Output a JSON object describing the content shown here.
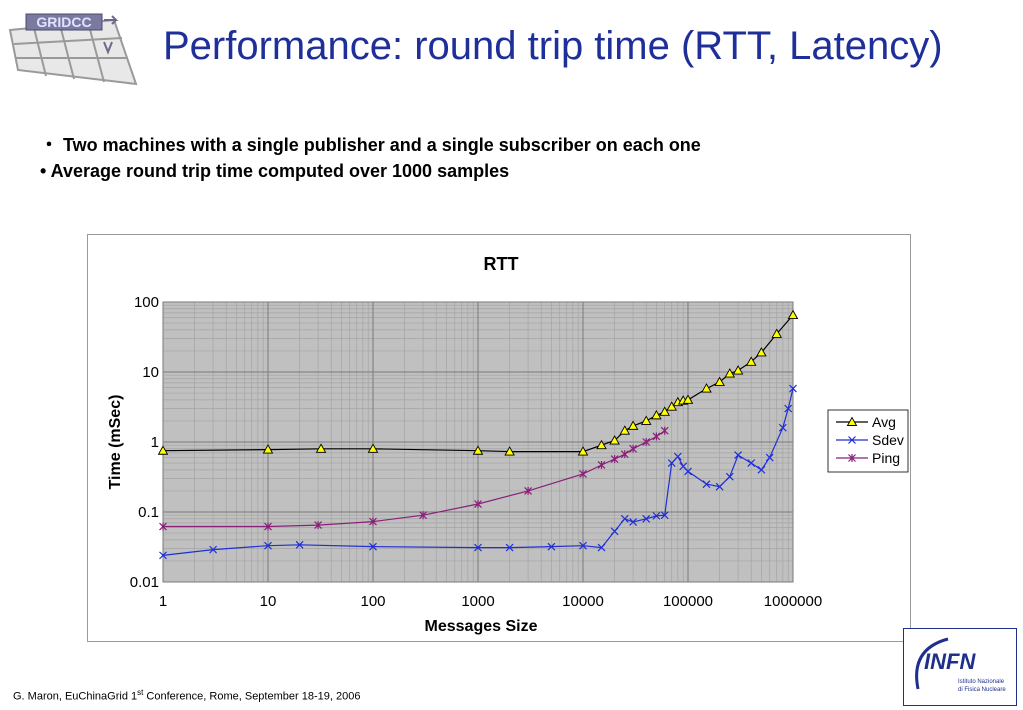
{
  "slide": {
    "logo_text": "GRIDCC",
    "title": "Performance: round trip time (RTT, Latency)",
    "bullets": [
      "・ Two machines with a single publisher and a single subscriber on each one",
      "• Average round trip time computed over 1000 samples"
    ],
    "footer": {
      "prefix": "G. Maron, EuChinaGrid 1",
      "sup": "st",
      "suffix": " Conference, Rome, September 18-19, 2006"
    },
    "infn_logo": {
      "mark": "INFN",
      "line1": "Istituto Nazionale",
      "line2": "di Fisica Nucleare"
    }
  },
  "colors": {
    "title": "#1f2f9a",
    "avg": "#000000",
    "sdev": "#1f2fd6",
    "ping": "#8a1f7a",
    "plot_bg": "#c0c0c0"
  },
  "chart_data": {
    "type": "line",
    "title": "RTT",
    "xlabel": "Messages Size",
    "ylabel": "Time (mSec)",
    "xscale": "log",
    "yscale": "log",
    "xlim": [
      1,
      1000000
    ],
    "ylim": [
      0.01,
      100
    ],
    "x_ticks": [
      "1",
      "10",
      "100",
      "1000",
      "10000",
      "100000",
      "1000000"
    ],
    "y_ticks": [
      "100",
      "10",
      "1",
      "0.1",
      "0.01"
    ],
    "grid": true,
    "legend": "right",
    "series": [
      {
        "name": "Avg",
        "color": "#000000",
        "marker": "triangle",
        "points": [
          [
            1,
            0.75
          ],
          [
            10,
            0.78
          ],
          [
            32,
            0.8
          ],
          [
            100,
            0.8
          ],
          [
            1000,
            0.75
          ],
          [
            2000,
            0.73
          ],
          [
            10000,
            0.73
          ],
          [
            15000,
            0.9
          ],
          [
            20000,
            1.05
          ],
          [
            25000,
            1.45
          ],
          [
            30000,
            1.7
          ],
          [
            40000,
            2.0
          ],
          [
            50000,
            2.4
          ],
          [
            60000,
            2.7
          ],
          [
            70000,
            3.2
          ],
          [
            80000,
            3.7
          ],
          [
            90000,
            3.9
          ],
          [
            100000,
            4.0
          ],
          [
            150000,
            5.8
          ],
          [
            200000,
            7.2
          ],
          [
            250000,
            9.5
          ],
          [
            300000,
            10.5
          ],
          [
            400000,
            14
          ],
          [
            500000,
            19
          ],
          [
            700000,
            35
          ],
          [
            1000000,
            65
          ]
        ]
      },
      {
        "name": "Sdev",
        "color": "#1f2fd6",
        "marker": "x",
        "points": [
          [
            1,
            0.024
          ],
          [
            3,
            0.029
          ],
          [
            10,
            0.033
          ],
          [
            20,
            0.034
          ],
          [
            100,
            0.032
          ],
          [
            1000,
            0.031
          ],
          [
            2000,
            0.031
          ],
          [
            5000,
            0.032
          ],
          [
            10000,
            0.033
          ],
          [
            15000,
            0.031
          ],
          [
            20000,
            0.053
          ],
          [
            25000,
            0.08
          ],
          [
            30000,
            0.072
          ],
          [
            40000,
            0.08
          ],
          [
            50000,
            0.088
          ],
          [
            60000,
            0.09
          ],
          [
            70000,
            0.5
          ],
          [
            80000,
            0.62
          ],
          [
            90000,
            0.45
          ],
          [
            100000,
            0.38
          ],
          [
            150000,
            0.25
          ],
          [
            200000,
            0.23
          ],
          [
            250000,
            0.32
          ],
          [
            300000,
            0.65
          ],
          [
            400000,
            0.5
          ],
          [
            500000,
            0.4
          ],
          [
            600000,
            0.6
          ],
          [
            800000,
            1.6
          ],
          [
            900000,
            3.0
          ],
          [
            1000000,
            5.8
          ]
        ]
      },
      {
        "name": "Ping",
        "color": "#8a1f7a",
        "marker": "star",
        "points": [
          [
            1,
            0.062
          ],
          [
            10,
            0.062
          ],
          [
            30,
            0.065
          ],
          [
            100,
            0.073
          ],
          [
            300,
            0.09
          ],
          [
            1000,
            0.13
          ],
          [
            3000,
            0.2
          ],
          [
            10000,
            0.35
          ],
          [
            15000,
            0.47
          ],
          [
            20000,
            0.57
          ],
          [
            25000,
            0.67
          ],
          [
            30000,
            0.8
          ],
          [
            40000,
            1.0
          ],
          [
            50000,
            1.2
          ],
          [
            60000,
            1.45
          ]
        ]
      }
    ]
  }
}
